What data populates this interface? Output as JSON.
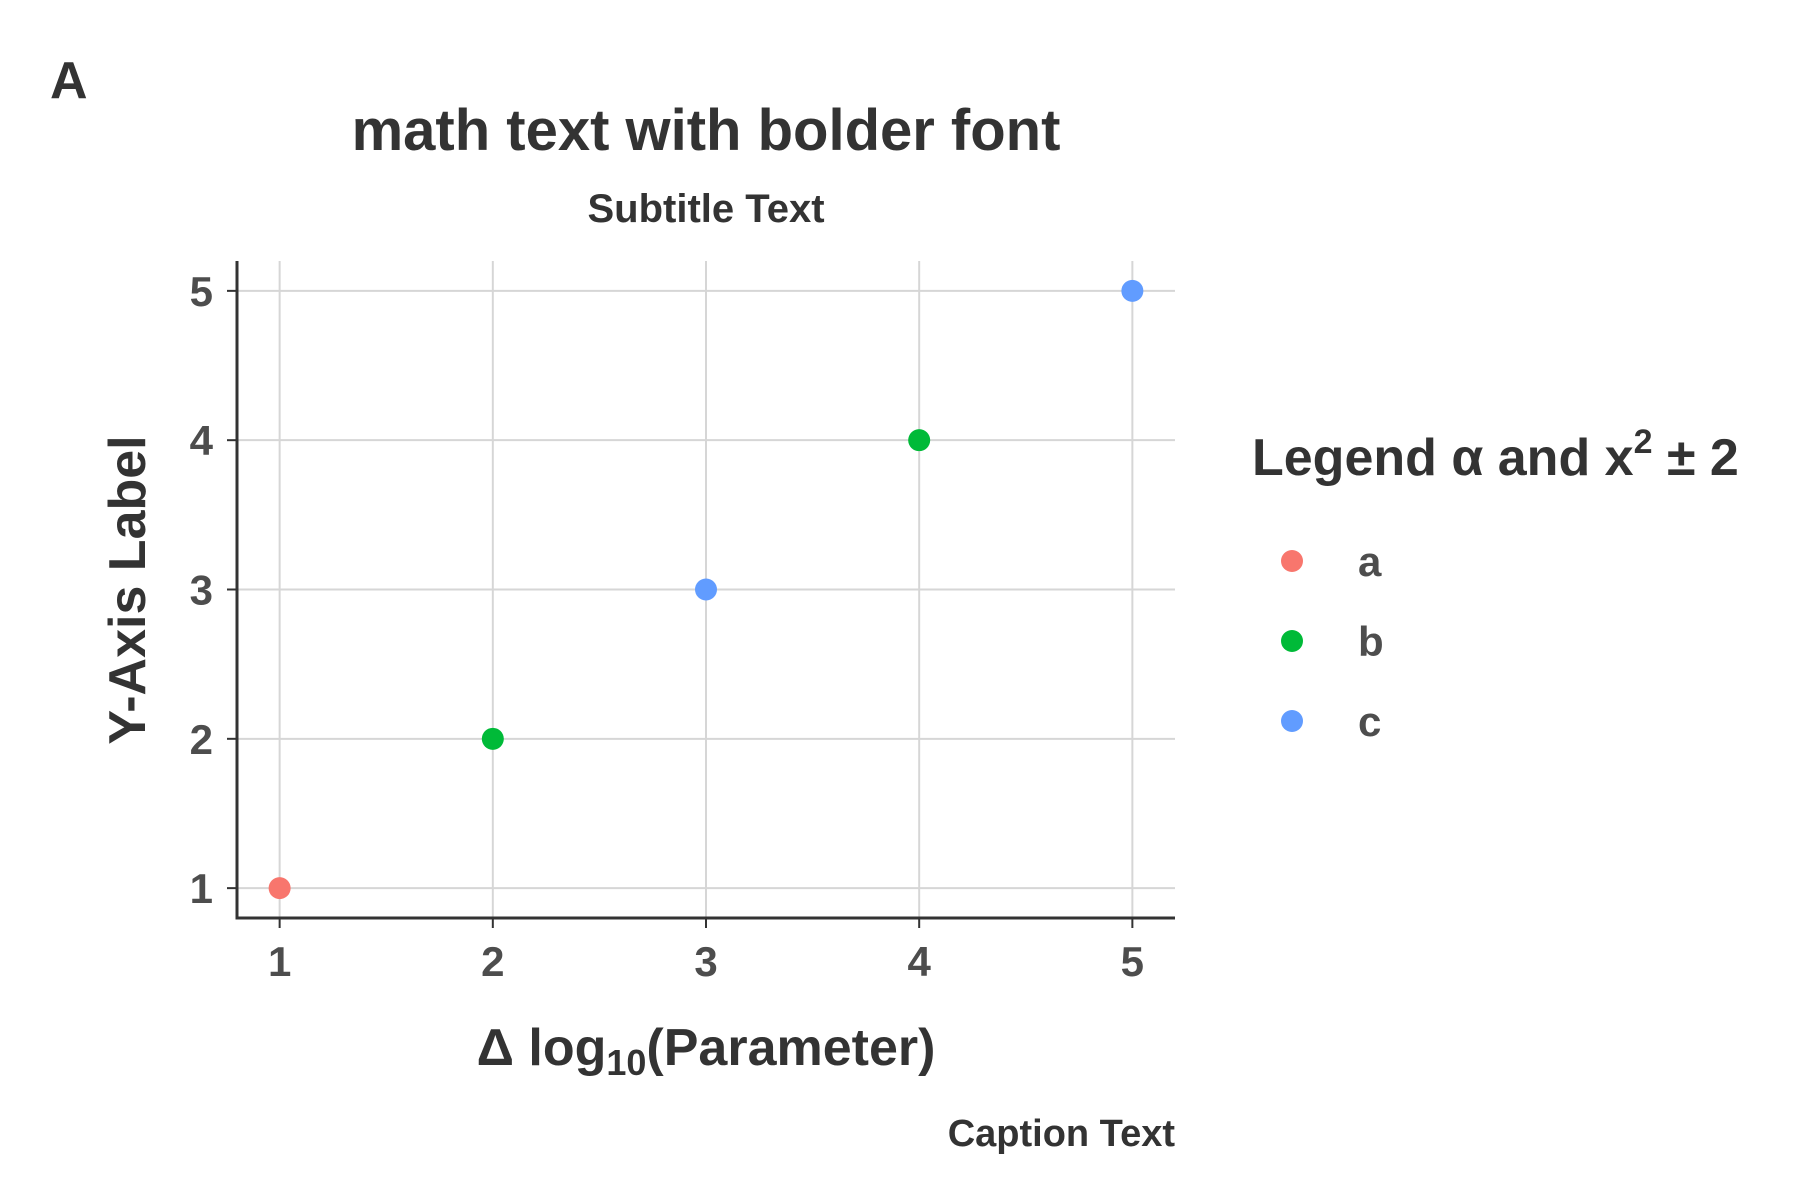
{
  "panel_tag": "A",
  "chart_data": {
    "type": "scatter",
    "title": "math text with bolder font",
    "subtitle": "Subtitle Text",
    "caption": "Caption Text",
    "xlabel": {
      "prefix": "Δ log",
      "subscript": "10",
      "suffix": "(Parameter)"
    },
    "ylabel": "Y-Axis Label",
    "xlim": [
      0.8,
      5.2
    ],
    "ylim": [
      0.8,
      5.2
    ],
    "xticks": [
      1,
      2,
      3,
      4,
      5
    ],
    "yticks": [
      1,
      2,
      3,
      4,
      5
    ],
    "grid": true,
    "legend": {
      "placement": "right",
      "title_prefix": "Legend α and x",
      "title_superscript": "2",
      "title_suffix": " ± 2",
      "entries": [
        {
          "label": "a",
          "color": "#F8766D"
        },
        {
          "label": "b",
          "color": "#00BA38"
        },
        {
          "label": "c",
          "color": "#619CFF"
        }
      ]
    },
    "points": [
      {
        "x": 1,
        "y": 1,
        "group": "a"
      },
      {
        "x": 2,
        "y": 2,
        "group": "b"
      },
      {
        "x": 3,
        "y": 3,
        "group": "c"
      },
      {
        "x": 4,
        "y": 4,
        "group": "b"
      },
      {
        "x": 5,
        "y": 5,
        "group": "c"
      }
    ]
  }
}
